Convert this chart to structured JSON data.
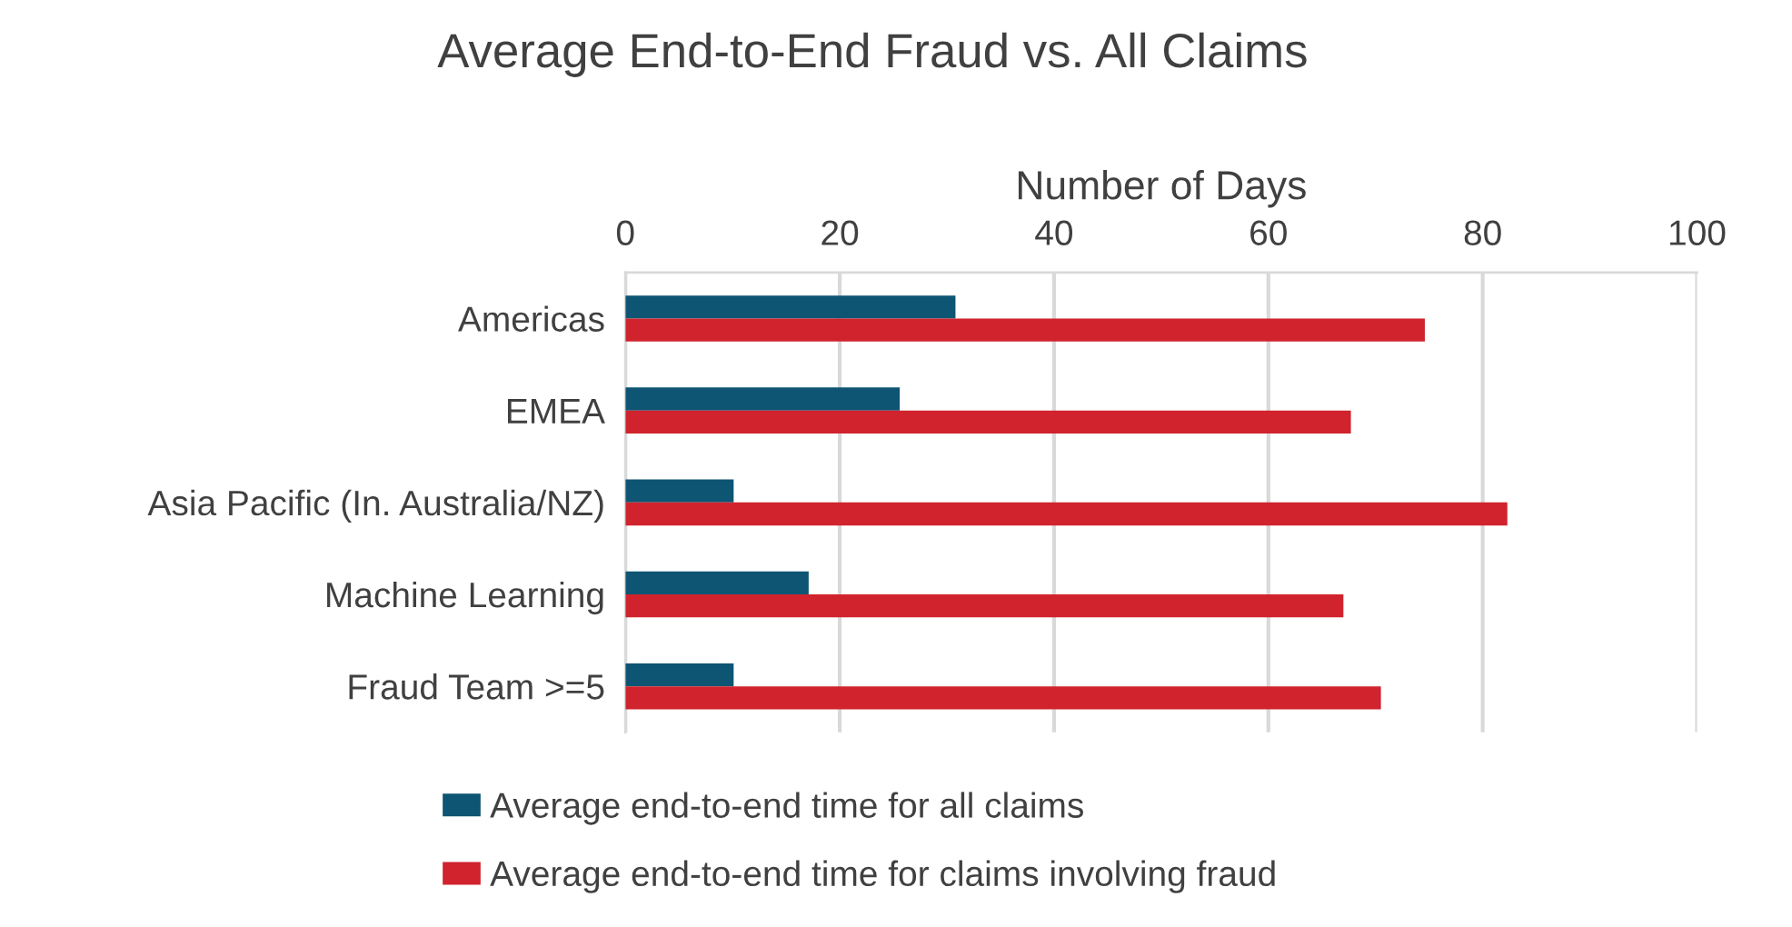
{
  "chart_data": {
    "type": "bar",
    "orientation": "horizontal",
    "title": "Average End-to-End Fraud vs. All Claims",
    "xlabel": "Number of Days",
    "categories": [
      "Americas",
      "EMEA",
      "Asia Pacific (In. Australia/NZ)",
      "Machine Learning",
      "Fraud Team >=5"
    ],
    "series": [
      {
        "name": "Average end-to-end time for all claims",
        "color": "#0d5573",
        "values": [
          30.8,
          25.6,
          10.1,
          17.1,
          10.1
        ]
      },
      {
        "name": "Average end-to-end time for claims involving fraud",
        "color": "#d0232d",
        "values": [
          74.6,
          67.7,
          82.3,
          67.0,
          70.5
        ]
      }
    ],
    "xlim": [
      0,
      100
    ],
    "xticks": [
      0,
      20,
      40,
      60,
      80,
      100
    ],
    "grid": "x",
    "legend": "bottom"
  }
}
